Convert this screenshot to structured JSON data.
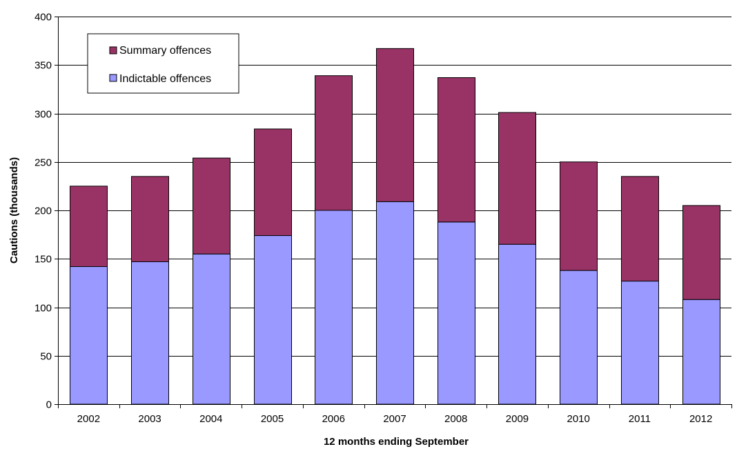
{
  "chart_data": {
    "type": "bar",
    "stacked": true,
    "title": "",
    "xlabel": "12 months ending September",
    "ylabel": "Cautions (thousands)",
    "ylim": [
      0,
      400
    ],
    "yticks": [
      0,
      50,
      100,
      150,
      200,
      250,
      300,
      350,
      400
    ],
    "grid": "horizontal",
    "legend_position": "top-left",
    "categories": [
      "2002",
      "2003",
      "2004",
      "2005",
      "2006",
      "2007",
      "2008",
      "2009",
      "2010",
      "2011",
      "2012"
    ],
    "series": [
      {
        "name": "Indictable offences",
        "color": "#9999ff",
        "values": [
          142,
          147,
          155,
          174,
          200,
          209,
          188,
          165,
          138,
          127,
          108
        ]
      },
      {
        "name": "Summary offences",
        "color": "#993366",
        "values": [
          83,
          88,
          99,
          110,
          139,
          158,
          149,
          136,
          112,
          108,
          97
        ]
      }
    ],
    "legend": [
      {
        "name": "Summary offences",
        "color": "#993366"
      },
      {
        "name": "Indictable offences",
        "color": "#9999ff"
      }
    ]
  }
}
